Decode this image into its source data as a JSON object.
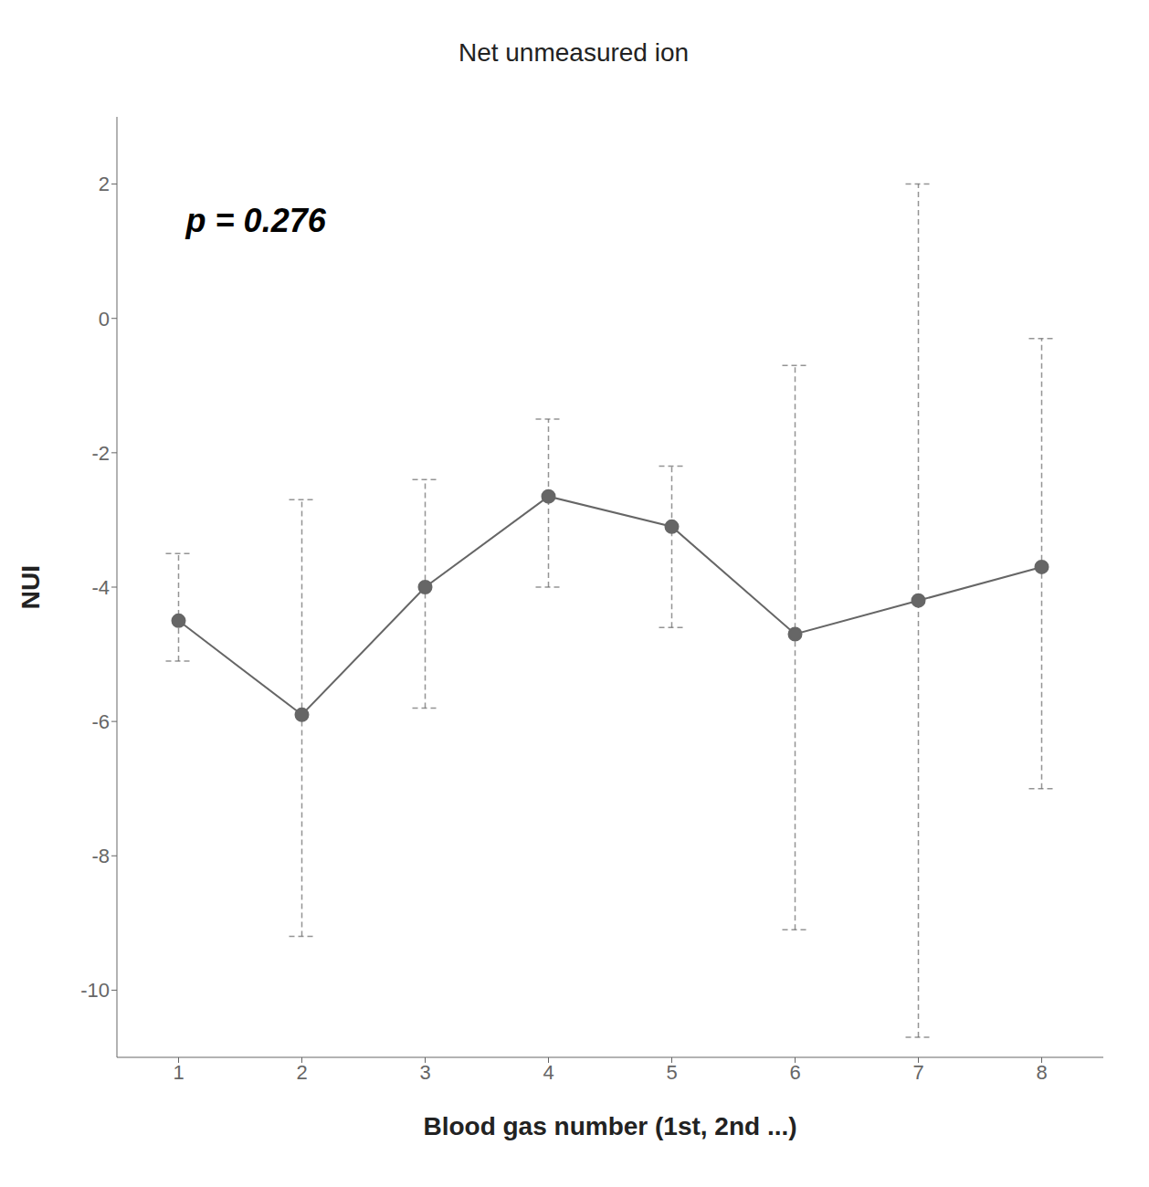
{
  "chart_data": {
    "type": "line",
    "title": "Net unmeasured ion",
    "xlabel": "Blood gas number (1st, 2nd ...)",
    "ylabel": "NUI",
    "annotations": [
      "p = 0.276"
    ],
    "x": [
      1,
      2,
      3,
      4,
      5,
      6,
      7,
      8
    ],
    "values": [
      -4.5,
      -5.9,
      -4.0,
      -2.65,
      -3.1,
      -4.7,
      -4.2,
      -3.7
    ],
    "ci_upper": [
      -3.5,
      -2.7,
      -2.4,
      -1.5,
      -2.2,
      -0.7,
      2.0,
      -0.3
    ],
    "ci_lower": [
      -5.1,
      -9.2,
      -5.8,
      -4.0,
      -4.6,
      -9.1,
      -10.7,
      -7.0
    ],
    "xlim": [
      0.5,
      8.5
    ],
    "xticks": [
      1,
      2,
      3,
      4,
      5,
      6,
      7,
      8
    ],
    "ylim": [
      -11,
      3
    ],
    "yticks": [
      -10,
      -8,
      -6,
      -4,
      -2,
      0,
      2
    ],
    "color": "#666666",
    "marker": "circle",
    "grid": false
  }
}
